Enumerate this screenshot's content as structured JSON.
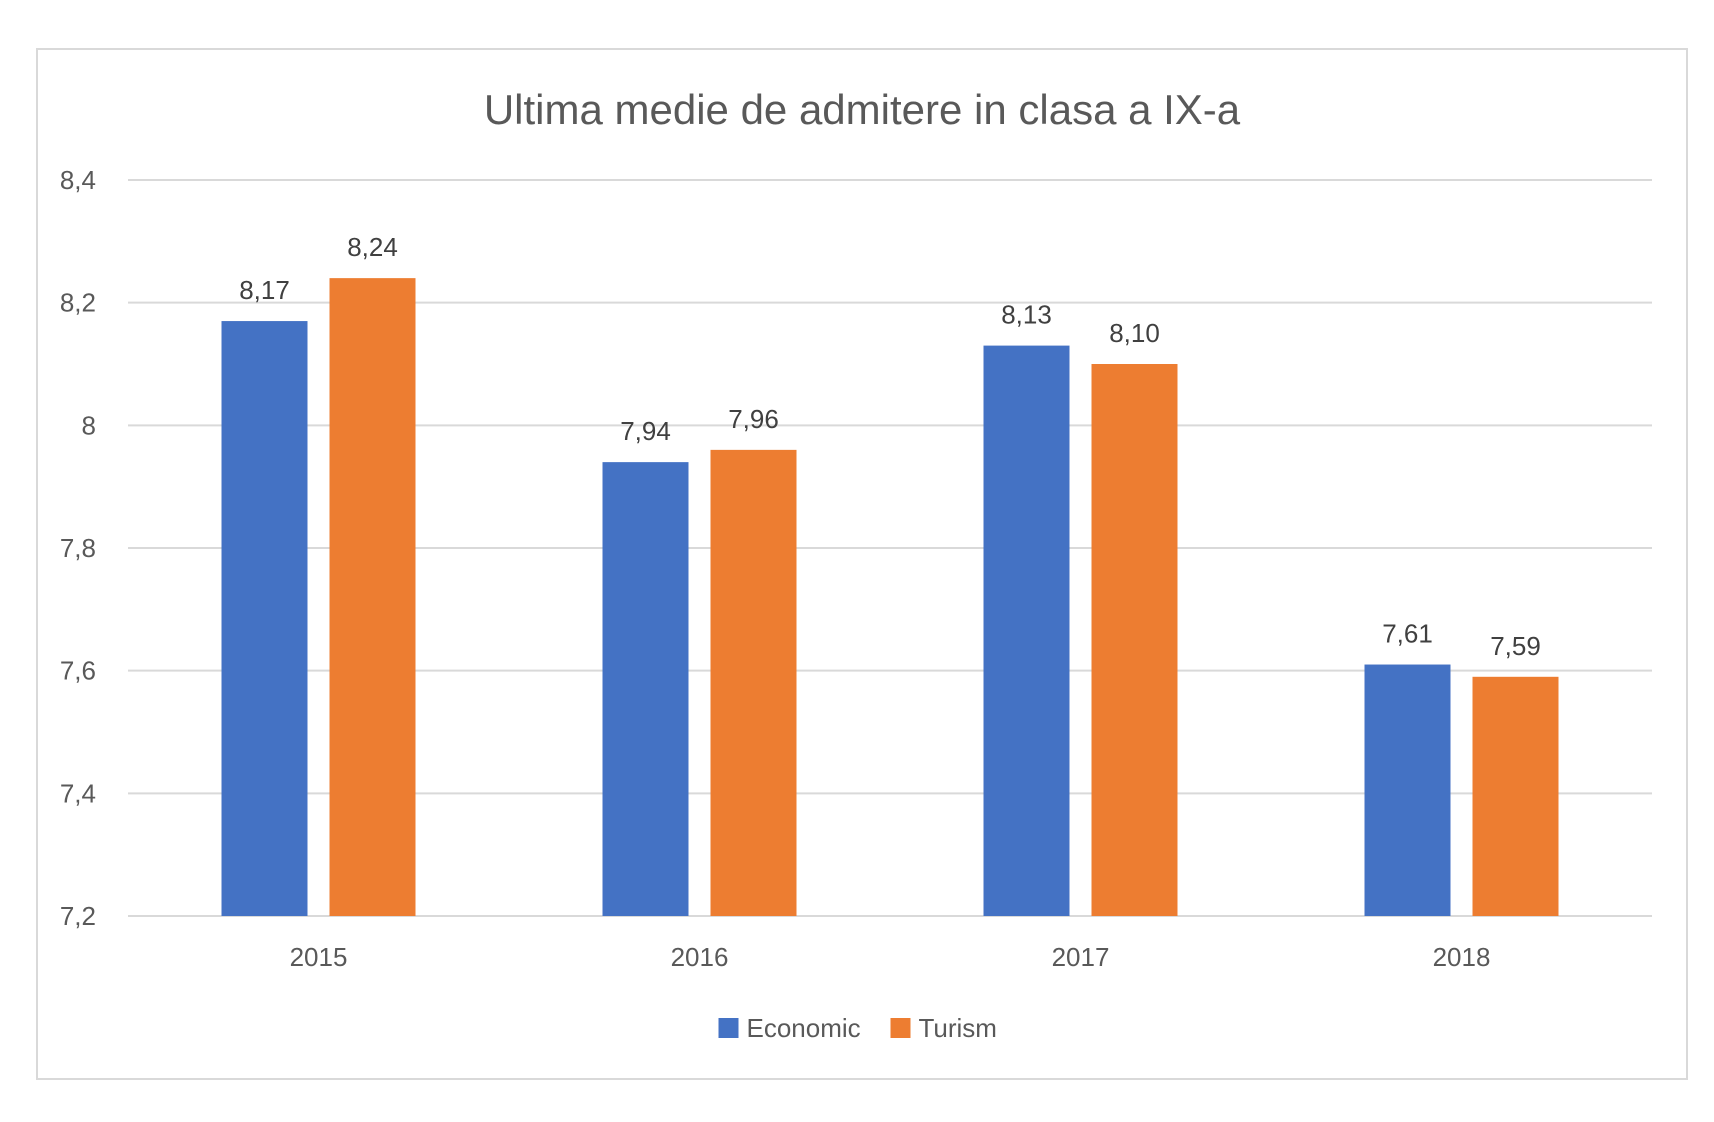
{
  "chart_data": {
    "type": "bar",
    "title": "Ultima medie de admitere in clasa a IX-a",
    "categories": [
      "2015",
      "2016",
      "2017",
      "2018"
    ],
    "series": [
      {
        "name": "Economic",
        "color": "#4472c4",
        "values": [
          8.17,
          7.94,
          8.13,
          7.61
        ],
        "labels": [
          "8,17",
          "7,94",
          "8,13",
          "7,61"
        ]
      },
      {
        "name": "Turism",
        "color": "#ed7d31",
        "values": [
          8.24,
          7.96,
          8.1,
          7.59
        ],
        "labels": [
          "8,24",
          "7,96",
          "8,10",
          "7,59"
        ]
      }
    ],
    "yticks": [
      7.2,
      7.4,
      7.6,
      7.8,
      8.0,
      8.2,
      8.4
    ],
    "ytick_labels": [
      "7,2",
      "7,4",
      "7,6",
      "7,8",
      "8",
      "8,2",
      "8,4"
    ],
    "ylim": [
      7.2,
      8.4
    ],
    "xlabel": "",
    "ylabel": "",
    "grid": true,
    "legend_position": "bottom"
  }
}
